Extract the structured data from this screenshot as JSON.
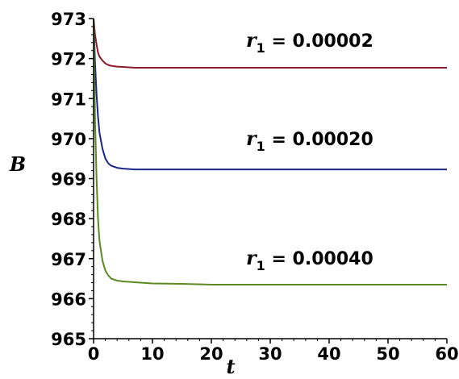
{
  "chart_data": {
    "type": "line",
    "xlabel": "t",
    "ylabel": "B",
    "xlim": [
      0,
      60
    ],
    "ylim": [
      965,
      973
    ],
    "x_ticks": [
      "0",
      "10",
      "20",
      "30",
      "40",
      "50",
      "60"
    ],
    "y_ticks": [
      "965",
      "966",
      "967",
      "968",
      "969",
      "970",
      "971",
      "972",
      "973"
    ],
    "x": [
      0,
      0.25,
      0.5,
      0.75,
      1,
      1.5,
      2,
      2.5,
      3,
      4,
      5,
      6,
      7,
      8,
      10,
      15,
      20,
      30,
      40,
      50,
      60
    ],
    "series": [
      {
        "color": "#8b1a2b",
        "values": [
          973.0,
          972.6,
          972.35,
          972.15,
          972.05,
          971.95,
          971.88,
          971.84,
          971.82,
          971.8,
          971.79,
          971.78,
          971.77,
          971.77,
          971.77,
          971.77,
          971.77,
          971.77,
          971.77,
          971.77,
          971.77
        ]
      },
      {
        "color": "#1a2588",
        "values": [
          973.0,
          971.9,
          971.1,
          970.55,
          970.15,
          969.75,
          969.5,
          969.38,
          969.32,
          969.27,
          969.25,
          969.24,
          969.23,
          969.23,
          969.23,
          969.23,
          969.23,
          969.23,
          969.23,
          969.23,
          969.23
        ]
      },
      {
        "color": "#5a8a1f",
        "values": [
          973.0,
          970.5,
          969.0,
          968.0,
          967.45,
          966.95,
          966.7,
          966.58,
          966.5,
          966.45,
          966.43,
          966.42,
          966.41,
          966.4,
          966.38,
          966.37,
          966.35,
          966.35,
          966.35,
          966.35,
          966.35
        ]
      }
    ],
    "annotations": [
      {
        "var": "r",
        "sub": "1",
        "text": " = 0.00002"
      },
      {
        "var": "r",
        "sub": "1",
        "text": " = 0.00020"
      },
      {
        "var": "r",
        "sub": "1",
        "text": " = 0.00040"
      }
    ],
    "grid": false,
    "legend": "none"
  }
}
